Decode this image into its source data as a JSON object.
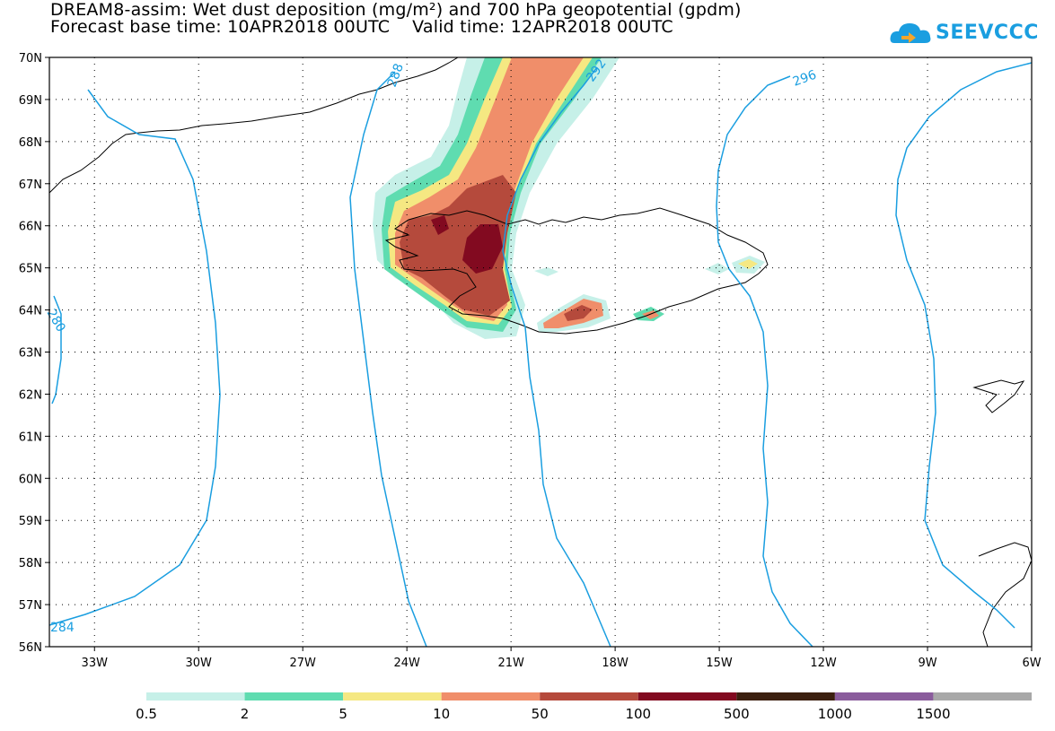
{
  "header": {
    "title_line1": "DREAM8-assim: Wet dust deposition (mg/m²) and 700 hPa geopotential (gpdm)",
    "title_line2": "Forecast base time: 10APR2018 00UTC    Valid time: 12APR2018 00UTC"
  },
  "logo": {
    "text": "SEEVCCC",
    "icon": "cloud-icon",
    "color": "#1a9ee0"
  },
  "map": {
    "lat_labels": [
      "70N",
      "69N",
      "68N",
      "67N",
      "66N",
      "65N",
      "64N",
      "63N",
      "62N",
      "61N",
      "60N",
      "59N",
      "58N",
      "57N",
      "56N"
    ],
    "lon_labels": [
      "33W",
      "30W",
      "27W",
      "24W",
      "21W",
      "18W",
      "15W",
      "12W",
      "9W",
      "6W"
    ],
    "contour_color": "#1a9ee0",
    "contour_labels": [
      "288",
      "292",
      "296",
      "280",
      "284"
    ]
  },
  "legend": {
    "labels": [
      "0.5",
      "2",
      "5",
      "10",
      "50",
      "100",
      "500",
      "1000",
      "1500"
    ],
    "colors": [
      "#c6f0e8",
      "#5fdcb0",
      "#f5e882",
      "#f08e6a",
      "#b54a3c",
      "#820a20",
      "#3c2010",
      "#8a5c9c",
      "#a8a8a8"
    ]
  }
}
